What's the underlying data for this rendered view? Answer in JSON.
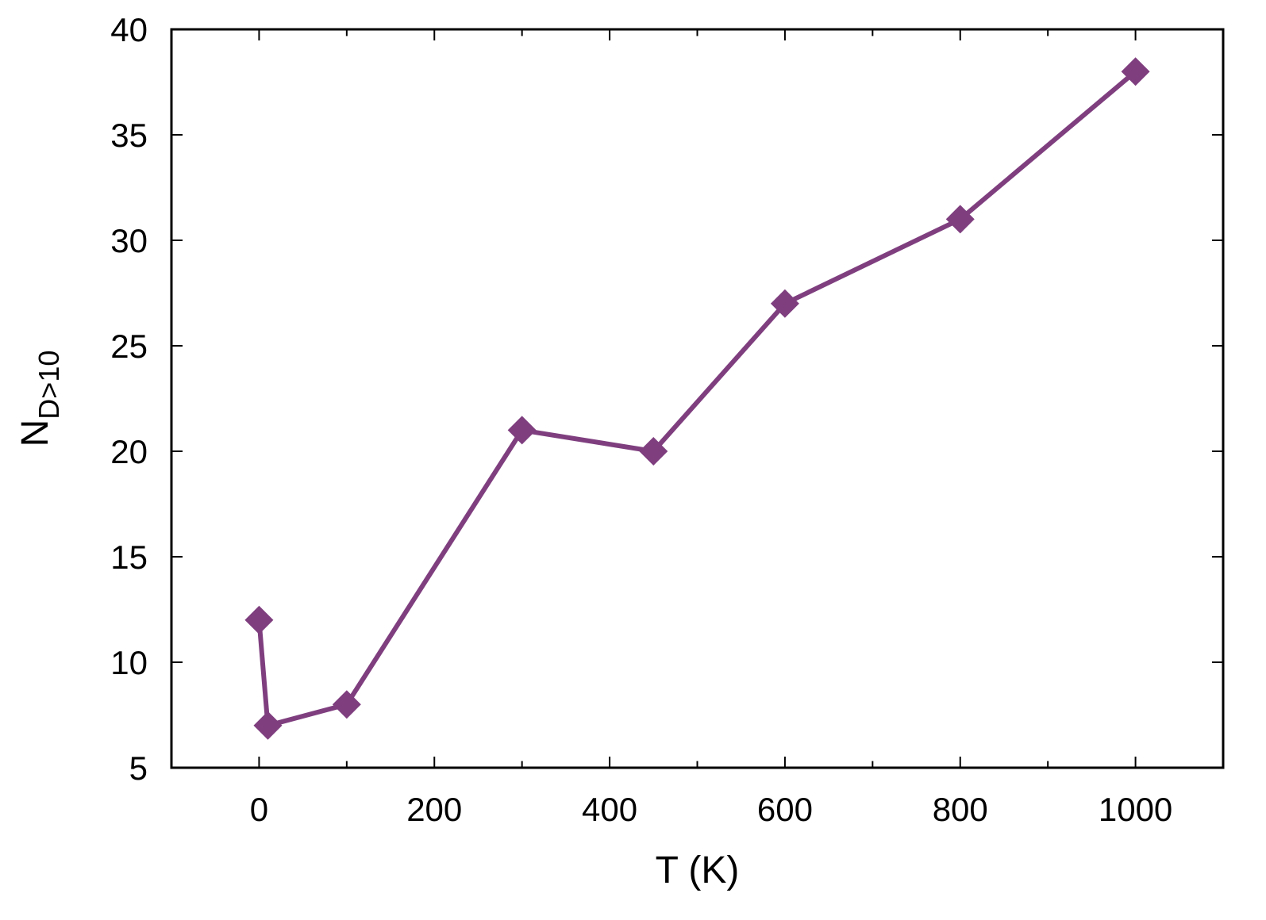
{
  "chart_data": {
    "type": "line",
    "title": "",
    "xlabel": "T (K)",
    "ylabel": {
      "main": "N",
      "subscript": "D>10"
    },
    "xlim": [
      -100,
      1100
    ],
    "ylim": [
      5,
      40
    ],
    "xticks": [
      "0",
      "200",
      "400",
      "600",
      "800",
      "1000"
    ],
    "yticks": [
      "5",
      "10",
      "15",
      "20",
      "25",
      "30",
      "35",
      "40"
    ],
    "grid": false,
    "legend": "none",
    "series": [
      {
        "color": "#7f3f7f",
        "marker": "diamond",
        "x": [
          0,
          10,
          100,
          300,
          450,
          600,
          800,
          1000
        ],
        "y": [
          12,
          7,
          8,
          21,
          20,
          27,
          31,
          38
        ]
      }
    ]
  }
}
